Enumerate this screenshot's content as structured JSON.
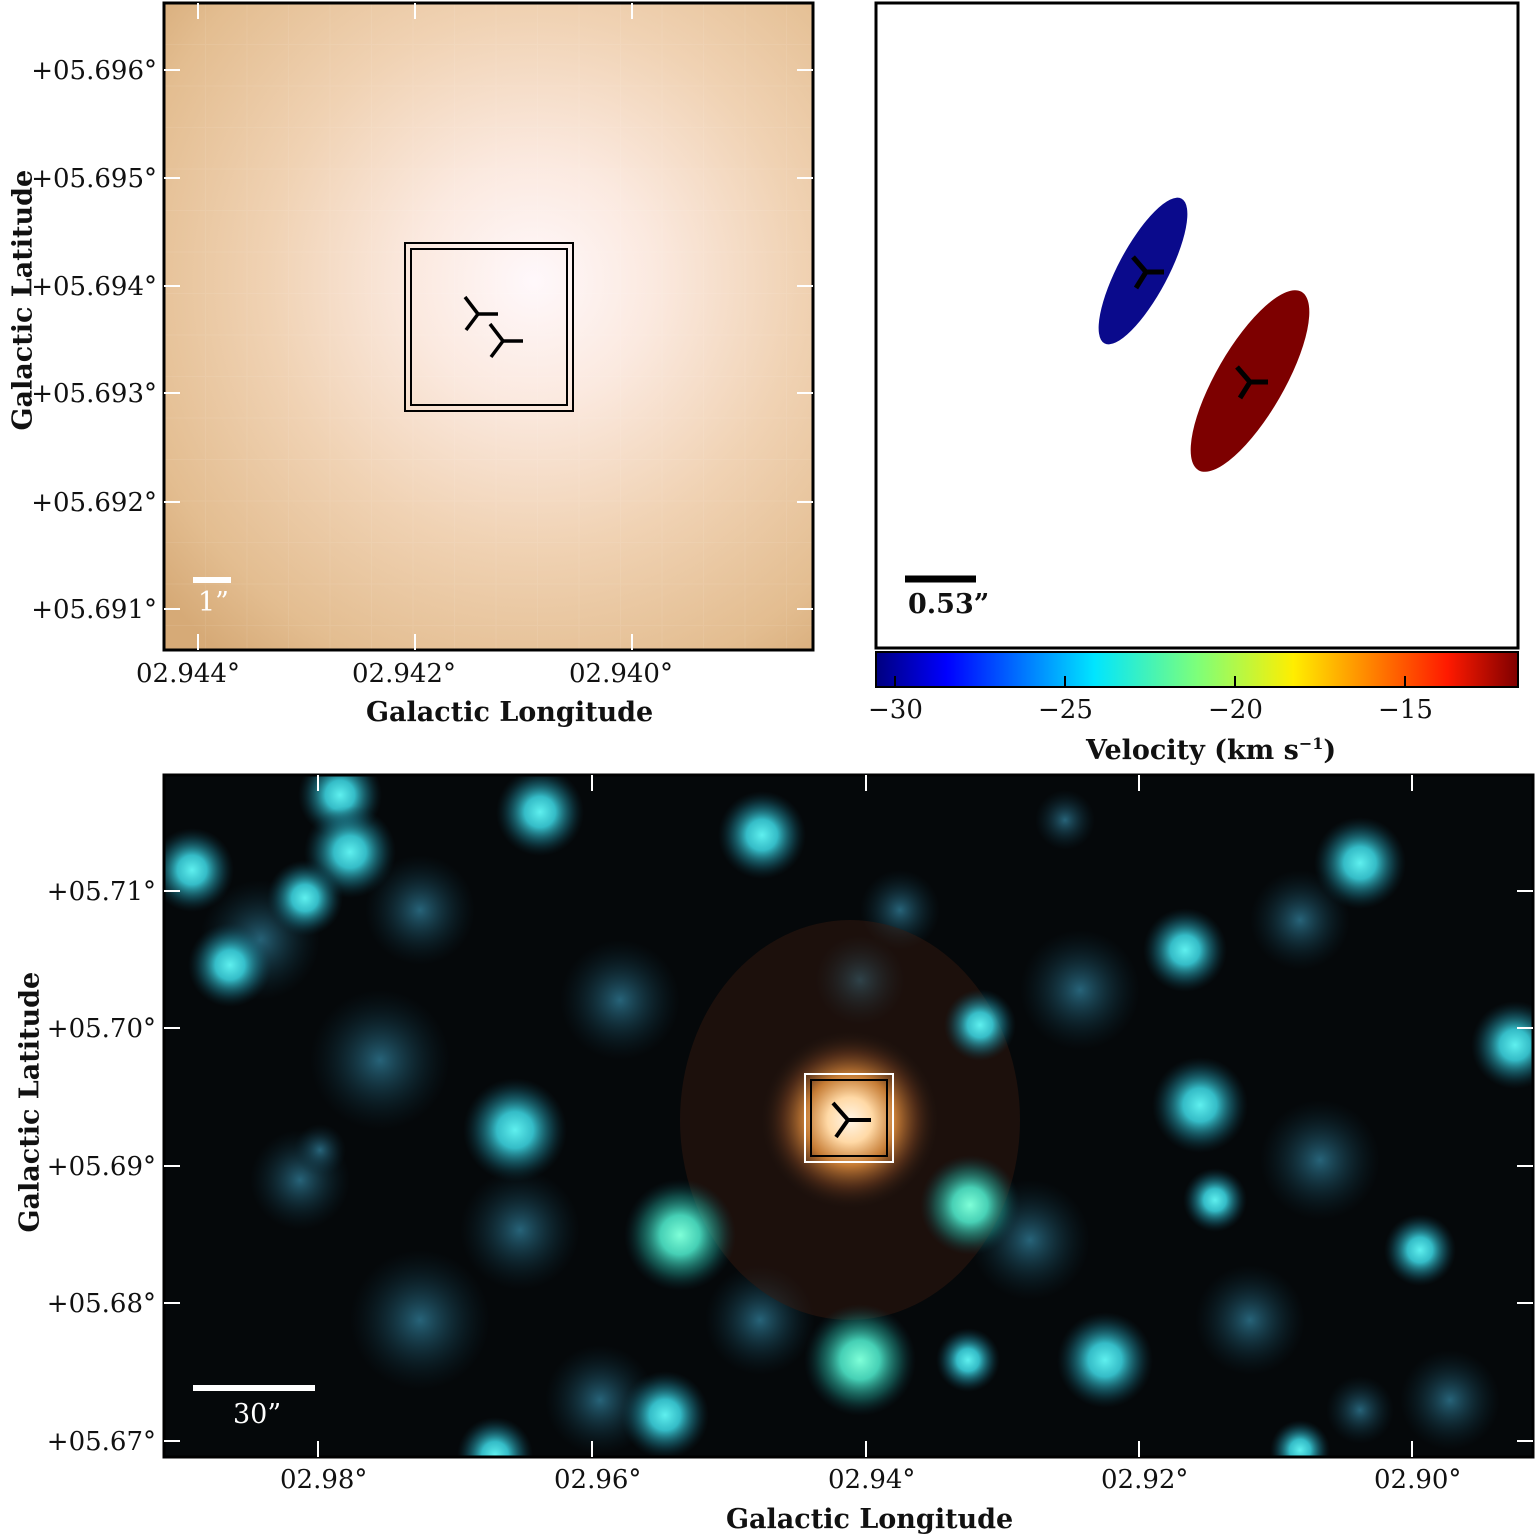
{
  "top_left": {
    "y_ticks": [
      "+05.696°",
      "+05.695°",
      "+05.694°",
      "+05.693°",
      "+05.692°",
      "+05.691°"
    ],
    "x_ticks": [
      "02.944°",
      "02.942°",
      "02.940°"
    ],
    "xlabel": "Galactic Longitude",
    "ylabel": "Galactic Latitude",
    "scale_label": "1”"
  },
  "top_right": {
    "scale_label": "0.53”",
    "colorbar_ticks": [
      "−30",
      "−25",
      "−20",
      "−15"
    ],
    "colorbar_label": "Velocity (km s",
    "colorbar_label_sup": "−1",
    "colorbar_label_end": ")",
    "components": [
      {
        "color": "#0a0a8c"
      },
      {
        "color": "#7d0000"
      }
    ]
  },
  "bottom": {
    "y_ticks": [
      "+05.71°",
      "+05.70°",
      "+05.69°",
      "+05.68°",
      "+05.67°"
    ],
    "x_ticks": [
      "02.98°",
      "02.96°",
      "02.94°",
      "02.92°",
      "02.90°"
    ],
    "xlabel": "Galactic Longitude",
    "ylabel": "Galactic Latitude",
    "scale_label": "30”"
  }
}
